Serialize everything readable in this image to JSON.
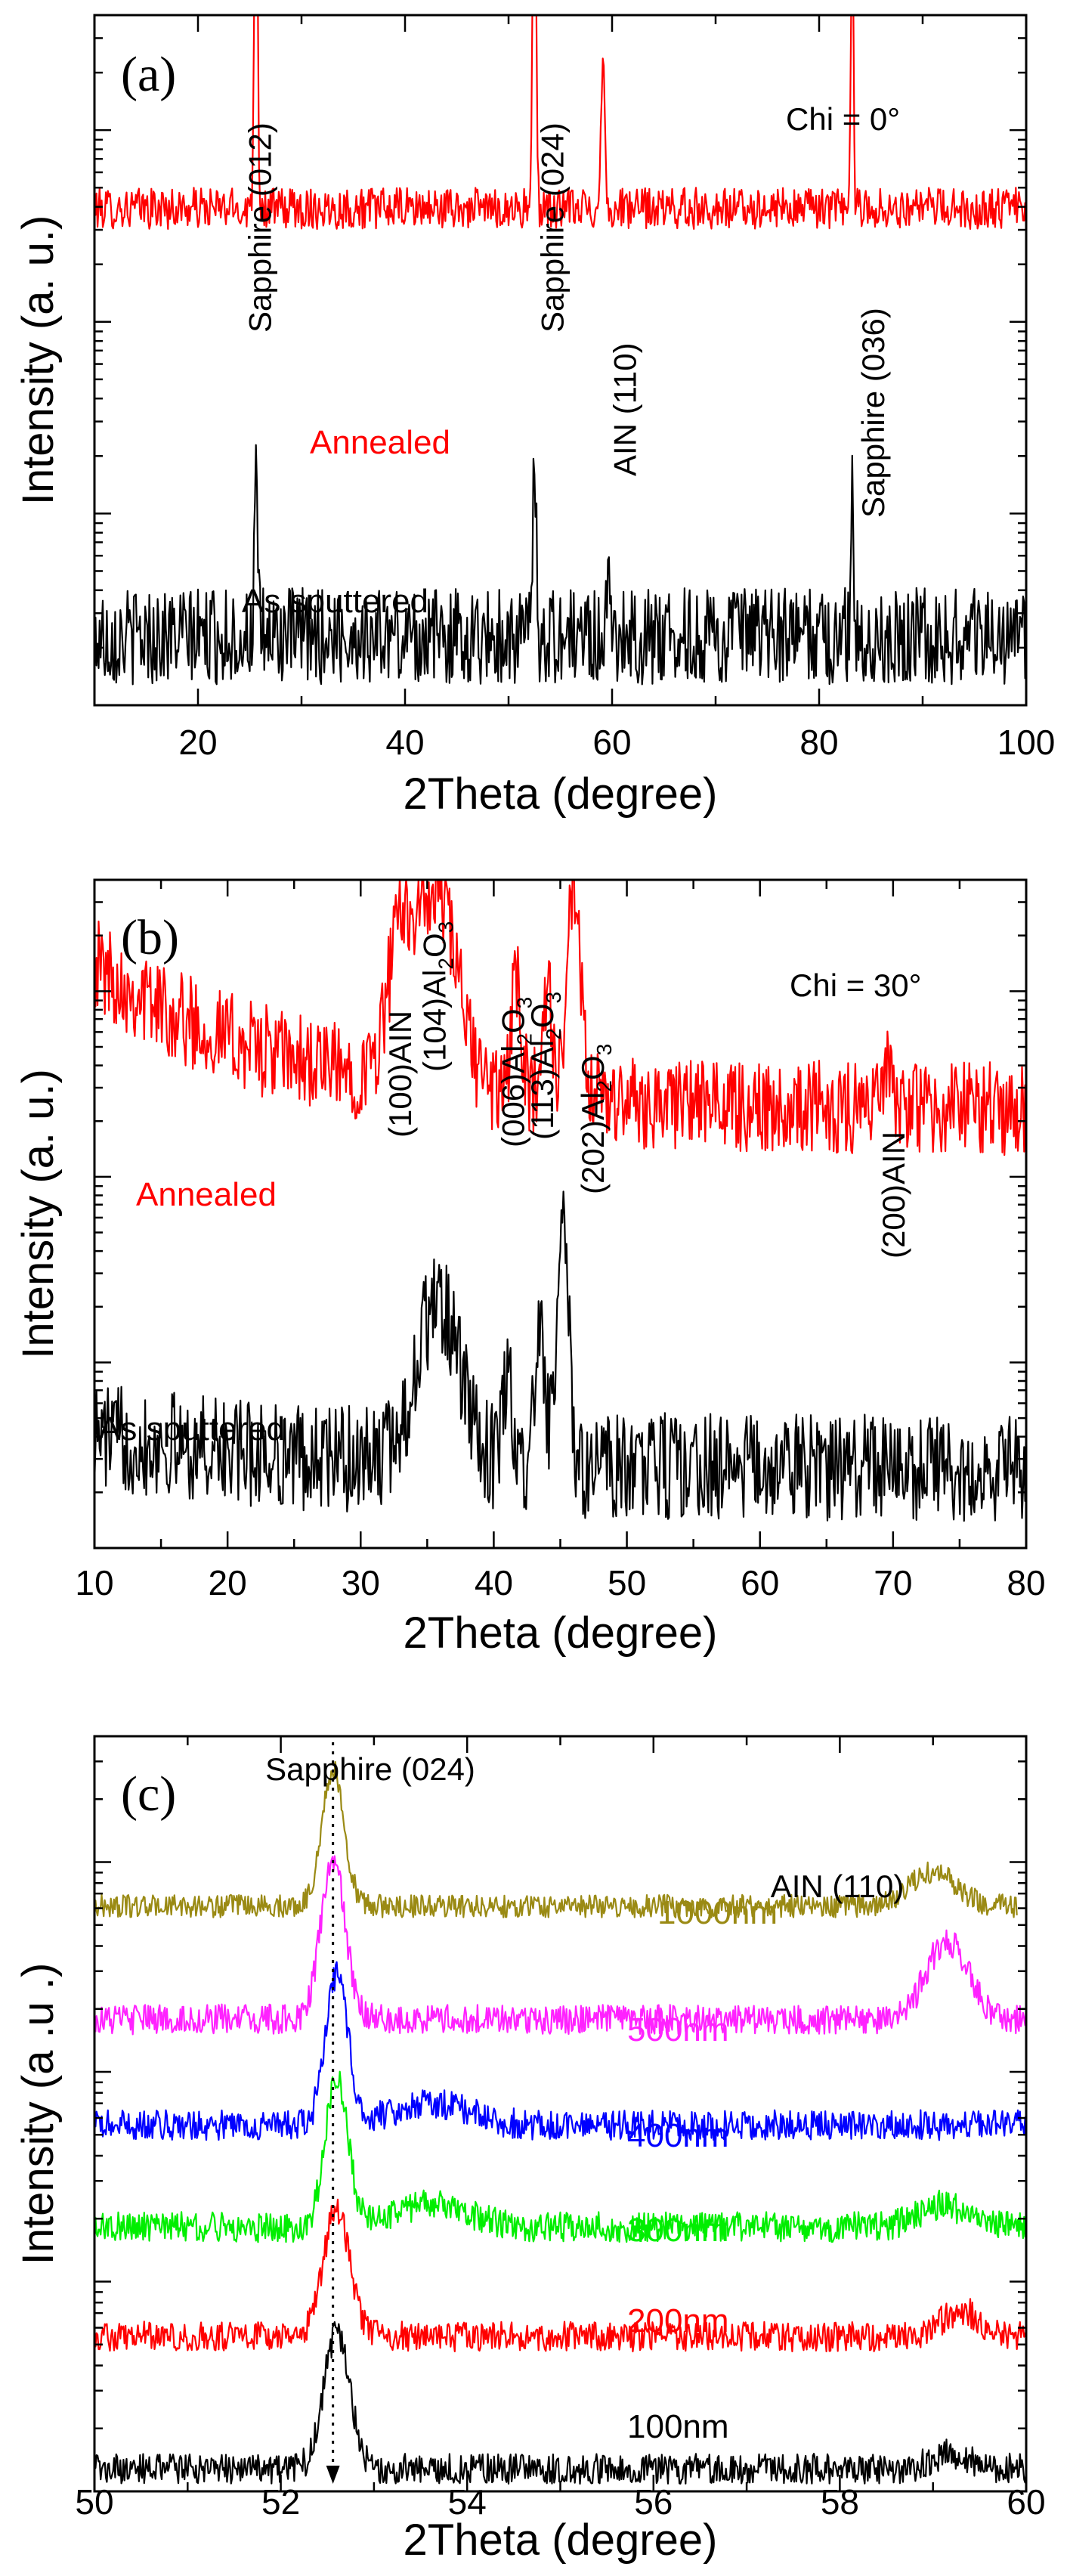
{
  "colors": {
    "black": "#000000",
    "red": "#ff0000",
    "olive": "#9a8a14",
    "magenta": "#ff22ff",
    "blue": "#0000ff",
    "green": "#00ee00"
  },
  "chart_data": [
    {
      "type": "line",
      "panel_label": "(a)",
      "xlabel": "2Theta (degree)",
      "ylabel": "Intensity (a. u.)",
      "xlim": [
        10,
        100
      ],
      "xticks": [
        "20",
        "40",
        "60",
        "80",
        "100"
      ],
      "y_scale": "log",
      "y_ticks_labeled": false,
      "condition": "Chi = 0°",
      "series": [
        {
          "name": "Annealed",
          "color": "red",
          "baseline": 0.72,
          "noise": 0.03,
          "peaks": [
            [
              25.6,
              0.62,
              0.15
            ],
            [
              52.5,
              0.64,
              0.15
            ],
            [
              59.1,
              0.22,
              0.18
            ],
            [
              83.2,
              0.45,
              0.12
            ]
          ]
        },
        {
          "name": "As sputtered",
          "color": "black",
          "baseline": 0.1,
          "noise": 0.07,
          "peaks": [
            [
              25.6,
              0.22,
              0.15
            ],
            [
              52.5,
              0.3,
              0.15
            ],
            [
              59.8,
              0.06,
              0.3
            ],
            [
              83.2,
              0.24,
              0.08
            ]
          ]
        }
      ],
      "annotations": [
        {
          "text": "Sapphire (012)",
          "x": 25.6
        },
        {
          "text": "Sapphire (024)",
          "x": 52.5
        },
        {
          "text": "AIN (110)",
          "x": 59.1
        },
        {
          "text": "Sapphire (036)",
          "x": 83.2
        }
      ]
    },
    {
      "type": "line",
      "panel_label": "(b)",
      "xlabel": "2Theta (degree)",
      "ylabel": "Intensity (a. u.)",
      "xlim": [
        10,
        80
      ],
      "xticks": [
        "10",
        "20",
        "30",
        "40",
        "50",
        "60",
        "70",
        "80"
      ],
      "y_scale": "log",
      "y_ticks_labeled": false,
      "condition": "Chi = 30°",
      "series": [
        {
          "name": "Annealed",
          "color": "red",
          "baseline": 0.7,
          "noise": 0.07,
          "decay": 0.22,
          "peaks": [
            [
              33.0,
              0.2,
              1.0
            ],
            [
              35.8,
              0.28,
              1.5
            ],
            [
              41.7,
              0.16,
              0.4
            ],
            [
              44.0,
              0.16,
              0.4
            ],
            [
              46.0,
              0.3,
              0.5
            ],
            [
              69.5,
              0.05,
              0.5
            ]
          ]
        },
        {
          "name": "As sputtered",
          "color": "black",
          "baseline": 0.13,
          "noise": 0.08,
          "decay": 0.05,
          "peaks": [
            [
              35.8,
              0.24,
              1.6
            ],
            [
              41.0,
              0.12,
              0.4
            ],
            [
              43.5,
              0.18,
              0.4
            ],
            [
              45.2,
              0.38,
              0.4
            ]
          ]
        }
      ],
      "annotations": [
        {
          "text": "(100)AIN",
          "x": 33.0
        },
        {
          "text": "(104)Al",
          "sub": "2",
          "text2": "O",
          "sub2": "3",
          "x": 35.8
        },
        {
          "text": "(006)Al",
          "sub": "2",
          "text2": "O",
          "sub2": "3",
          "x": 41.7
        },
        {
          "text": "(113)Al",
          "sub": "2",
          "text2": "O",
          "sub2": "3",
          "x": 44.0
        },
        {
          "text": "(202)Al",
          "sub": "2",
          "text2": "O",
          "sub2": "3",
          "x": 46.0
        },
        {
          "text": "(200)AIN",
          "x": 69.5
        }
      ]
    },
    {
      "type": "line",
      "panel_label": "(c)",
      "xlabel": "2Theta (degree)",
      "ylabel": "Intensity (a .u .)",
      "xlim": [
        50,
        60
      ],
      "xticks": [
        "50",
        "52",
        "54",
        "56",
        "58",
        "60"
      ],
      "y_scale": "log",
      "y_ticks_labeled": false,
      "reference_line_x": 52.56,
      "series": [
        {
          "name": "1000nm",
          "color": "olive",
          "baseline": 0.775,
          "noise": 0.015,
          "xmax": 59.9,
          "peaks": [
            [
              52.56,
              0.18,
              0.12
            ],
            [
              59.0,
              0.045,
              0.25
            ]
          ]
        },
        {
          "name": "500nm",
          "color": "magenta",
          "baseline": 0.625,
          "noise": 0.02,
          "peaks": [
            [
              52.56,
              0.21,
              0.13
            ],
            [
              59.15,
              0.105,
              0.22
            ]
          ]
        },
        {
          "name": "400nm",
          "color": "blue",
          "baseline": 0.485,
          "noise": 0.02,
          "peaks": [
            [
              52.6,
              0.2,
              0.12
            ],
            [
              53.6,
              0.03,
              0.4
            ]
          ]
        },
        {
          "name": "300nm",
          "color": "green",
          "baseline": 0.35,
          "noise": 0.02,
          "peaks": [
            [
              52.6,
              0.2,
              0.12
            ],
            [
              53.6,
              0.03,
              0.4
            ],
            [
              59.1,
              0.03,
              0.25
            ]
          ]
        },
        {
          "name": "200nm",
          "color": "red",
          "baseline": 0.205,
          "noise": 0.02,
          "peaks": [
            [
              52.6,
              0.17,
              0.14
            ],
            [
              59.3,
              0.035,
              0.2
            ]
          ]
        },
        {
          "name": "100nm",
          "color": "black",
          "baseline": 0.03,
          "noise": 0.02,
          "peaks": [
            [
              52.6,
              0.18,
              0.14
            ],
            [
              59.2,
              0.02,
              0.2
            ]
          ]
        }
      ],
      "annotations": [
        {
          "text": "Sapphire (024)",
          "x": 52.6
        },
        {
          "text": "AIN (110)",
          "x": 59.1
        }
      ]
    }
  ]
}
